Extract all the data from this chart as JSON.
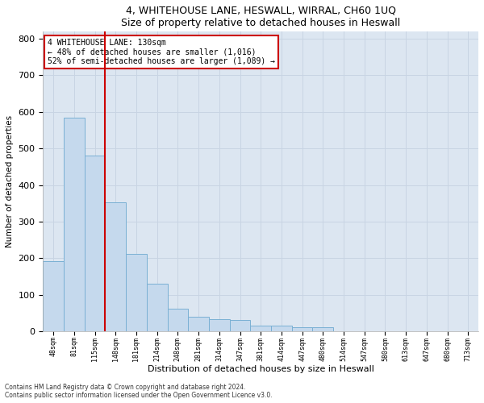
{
  "title1": "4, WHITEHOUSE LANE, HESWALL, WIRRAL, CH60 1UQ",
  "title2": "Size of property relative to detached houses in Heswall",
  "xlabel": "Distribution of detached houses by size in Heswall",
  "ylabel": "Number of detached properties",
  "categories": [
    "48sqm",
    "81sqm",
    "115sqm",
    "148sqm",
    "181sqm",
    "214sqm",
    "248sqm",
    "281sqm",
    "314sqm",
    "347sqm",
    "381sqm",
    "414sqm",
    "447sqm",
    "480sqm",
    "514sqm",
    "547sqm",
    "580sqm",
    "613sqm",
    "647sqm",
    "680sqm",
    "713sqm"
  ],
  "values": [
    193,
    585,
    480,
    352,
    213,
    130,
    62,
    40,
    33,
    32,
    16,
    15,
    11,
    11,
    0,
    0,
    0,
    0,
    0,
    0,
    0
  ],
  "bar_color": "#c5d9ed",
  "bar_edge_color": "#7ab0d4",
  "redline_x": 2.5,
  "annotation_lines": [
    "4 WHITEHOUSE LANE: 130sqm",
    "← 48% of detached houses are smaller (1,016)",
    "52% of semi-detached houses are larger (1,089) →"
  ],
  "annotation_box_color": "#ffffff",
  "annotation_box_edge": "#cc0000",
  "redline_color": "#cc0000",
  "ylim": [
    0,
    820
  ],
  "yticks": [
    0,
    100,
    200,
    300,
    400,
    500,
    600,
    700,
    800
  ],
  "grid_color": "#c8d4e3",
  "bg_color": "#dce6f1",
  "footer1": "Contains HM Land Registry data © Crown copyright and database right 2024.",
  "footer2": "Contains public sector information licensed under the Open Government Licence v3.0."
}
